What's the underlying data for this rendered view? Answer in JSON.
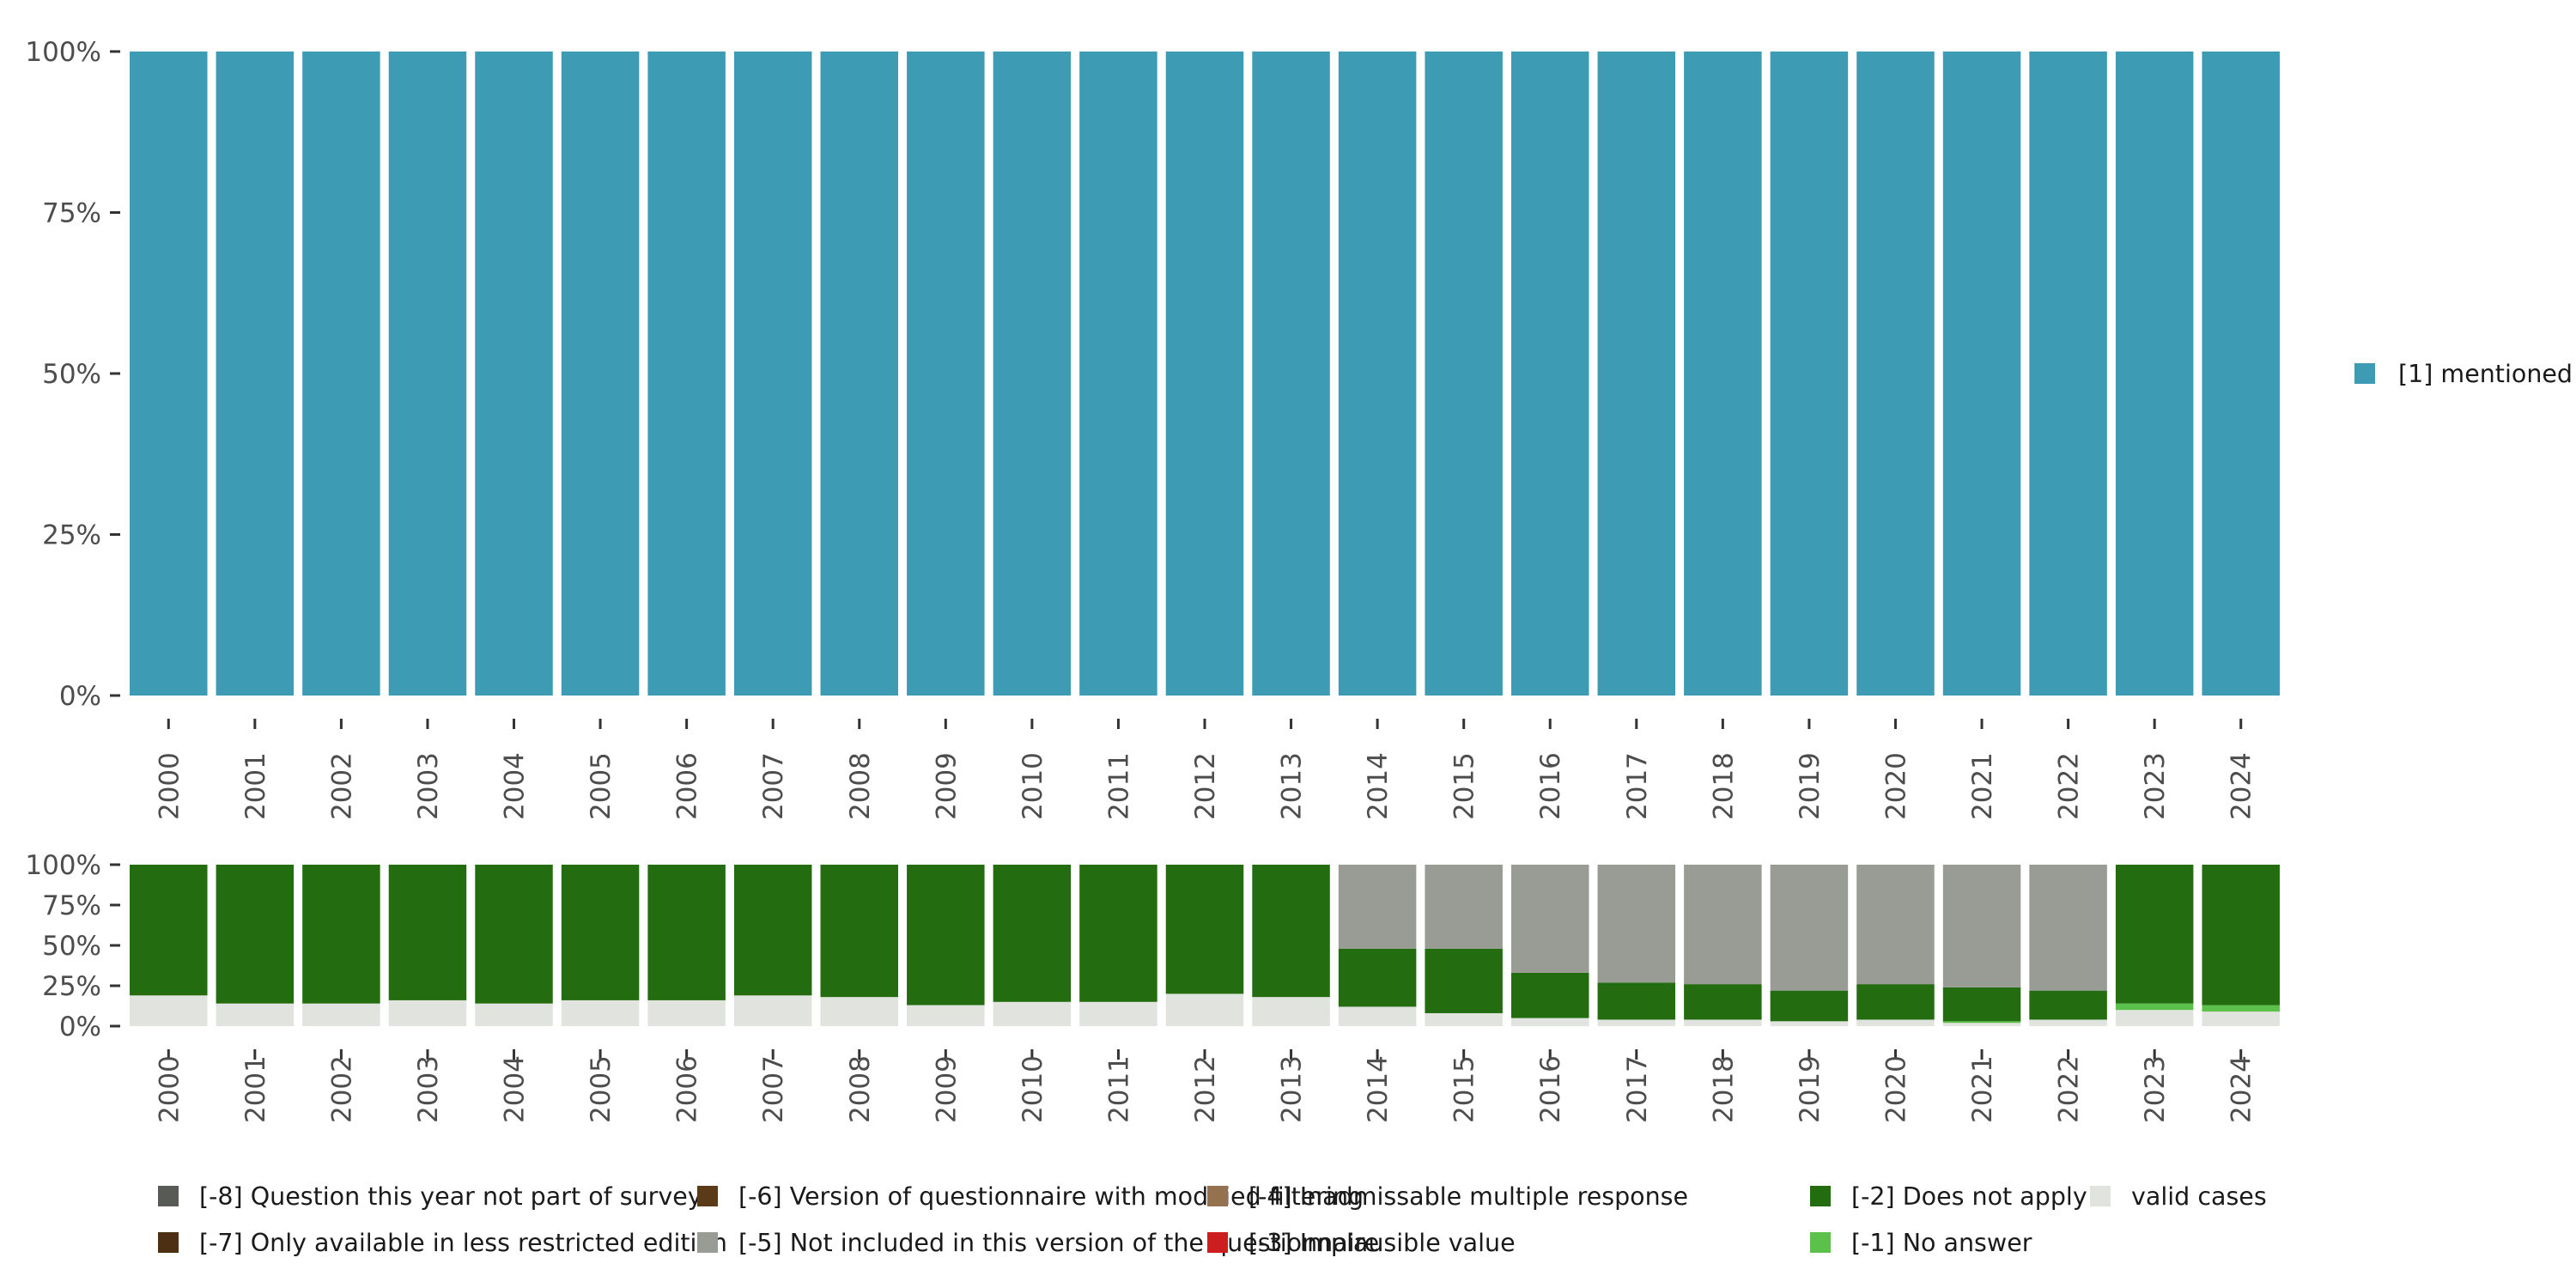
{
  "chart_data": [
    {
      "type": "bar",
      "stacked": true,
      "name": "main",
      "categories": [
        "2000",
        "2001",
        "2002",
        "2003",
        "2004",
        "2005",
        "2006",
        "2007",
        "2008",
        "2009",
        "2010",
        "2011",
        "2012",
        "2013",
        "2014",
        "2015",
        "2016",
        "2017",
        "2018",
        "2019",
        "2020",
        "2021",
        "2022",
        "2023",
        "2024"
      ],
      "series": [
        {
          "name": "[1] mentioned",
          "color": "#3d9bb4",
          "values": [
            100,
            100,
            100,
            100,
            100,
            100,
            100,
            100,
            100,
            100,
            100,
            100,
            100,
            100,
            100,
            100,
            100,
            100,
            100,
            100,
            100,
            100,
            100,
            100,
            100
          ]
        }
      ],
      "yticks": [
        "0%",
        "25%",
        "50%",
        "75%",
        "100%"
      ],
      "ylim": [
        0,
        100
      ],
      "legend_position": "right"
    },
    {
      "type": "bar",
      "stacked": true,
      "name": "missing",
      "categories": [
        "2000",
        "2001",
        "2002",
        "2003",
        "2004",
        "2005",
        "2006",
        "2007",
        "2008",
        "2009",
        "2010",
        "2011",
        "2012",
        "2013",
        "2014",
        "2015",
        "2016",
        "2017",
        "2018",
        "2019",
        "2020",
        "2021",
        "2022",
        "2023",
        "2024"
      ],
      "series": [
        {
          "name": "valid cases",
          "color": "#e1e3de",
          "values": [
            19,
            14,
            14,
            16,
            14,
            16,
            16,
            19,
            18,
            13,
            15,
            15,
            20,
            18,
            12,
            8,
            5,
            4,
            4,
            3,
            4,
            2,
            4,
            10,
            9
          ]
        },
        {
          "name": "[-1] No answer",
          "color": "#5bc14a",
          "values": [
            0,
            0,
            0,
            0,
            0,
            0,
            0,
            0,
            0,
            0,
            0,
            0,
            0,
            0,
            0,
            0,
            0,
            0,
            0,
            0,
            0,
            1,
            0,
            4,
            4
          ]
        },
        {
          "name": "[-2] Does not apply",
          "color": "#236c0f",
          "values": [
            81,
            86,
            86,
            84,
            86,
            84,
            84,
            81,
            82,
            87,
            85,
            85,
            80,
            82,
            36,
            40,
            28,
            23,
            22,
            19,
            22,
            21,
            18,
            86,
            87
          ]
        },
        {
          "name": "[-5] Not included in this version of the questionnaire",
          "color": "#999c95",
          "values": [
            0,
            0,
            0,
            0,
            0,
            0,
            0,
            0,
            0,
            0,
            0,
            0,
            0,
            0,
            52,
            52,
            67,
            73,
            74,
            78,
            74,
            76,
            78,
            0,
            0
          ]
        }
      ],
      "yticks": [
        "0%",
        "25%",
        "50%",
        "75%",
        "100%"
      ],
      "ylim": [
        0,
        100
      ],
      "legend_position": "bottom"
    }
  ],
  "legend_bottom": [
    {
      "label": "[-8] Question this year not part of survey",
      "color": "#575a55"
    },
    {
      "label": "[-7] Only available in less restricted edition",
      "color": "#4d3014"
    },
    {
      "label": "[-6] Version of questionnaire with modified filtering",
      "color": "#5b3a17"
    },
    {
      "label": "[-5] Not included in this version of the questionnaire",
      "color": "#999c95"
    },
    {
      "label": "[-4] Inadmissable multiple response",
      "color": "#94714f"
    },
    {
      "label": "[-3] Implausible value",
      "color": "#cc1e1e"
    },
    {
      "label": "[-2] Does not apply",
      "color": "#236c0f"
    },
    {
      "label": "[-1] No answer",
      "color": "#5bc14a"
    },
    {
      "label": "valid cases",
      "color": "#e1e3de"
    }
  ],
  "legend_right": [
    {
      "label": "[1] mentioned",
      "color": "#3d9bb4"
    }
  ]
}
